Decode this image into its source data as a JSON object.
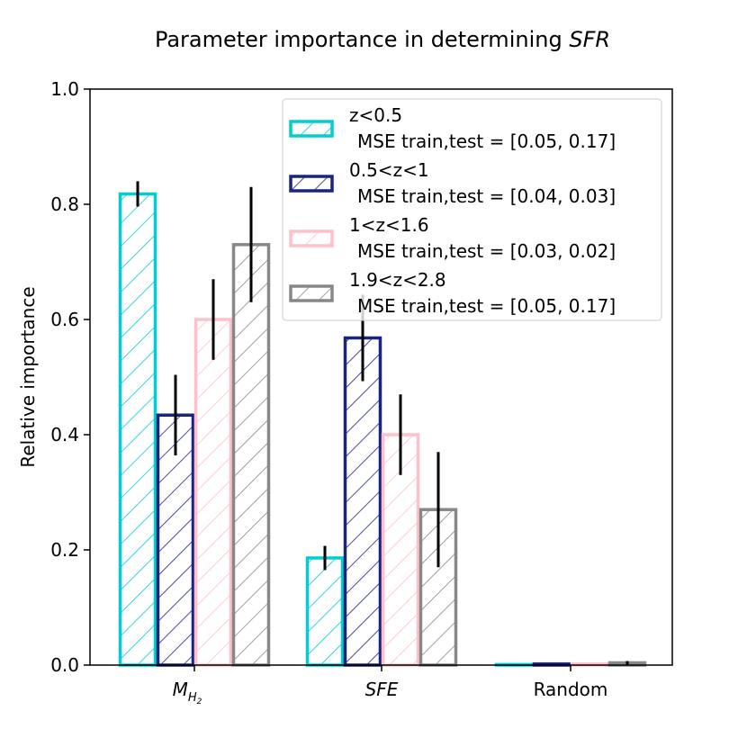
{
  "chart_data": {
    "type": "bar",
    "title": "Parameter importance in determining",
    "title_var": "SFR",
    "xlabel": "",
    "ylabel": "Relative importance",
    "ylim": [
      0,
      1.0
    ],
    "yticks": [
      "0.0",
      "0.2",
      "0.4",
      "0.6",
      "0.8",
      "1.0"
    ],
    "categories": [
      {
        "base": "M",
        "sub": "H",
        "subsub": "2"
      },
      {
        "base": "SFE"
      },
      {
        "base": "Random"
      }
    ],
    "series": [
      {
        "name": "z<0.5",
        "mse": "MSE train,test = [0.05, 0.17]",
        "color": "#00CED1",
        "values": [
          0.818,
          0.186,
          0.001
        ],
        "err": [
          0.022,
          0.021,
          0.0
        ]
      },
      {
        "name": "0.5<z<1",
        "mse": "MSE train,test = [0.04, 0.03]",
        "color": "#1A237E",
        "values": [
          0.434,
          0.568,
          0.002
        ],
        "err": [
          0.07,
          0.075,
          0.0
        ]
      },
      {
        "name": "1<z<1.6",
        "mse": "MSE train,test = [0.03, 0.02]",
        "color": "#FFC0CB",
        "values": [
          0.6,
          0.4,
          0.002
        ],
        "err": [
          0.07,
          0.07,
          0.0
        ]
      },
      {
        "name": "1.9<z<2.8",
        "mse": "MSE train,test = [0.05, 0.17]",
        "color": "#888888",
        "values": [
          0.73,
          0.27,
          0.004
        ],
        "err": [
          0.1,
          0.1,
          0.003
        ]
      }
    ],
    "legend": "top-right"
  }
}
